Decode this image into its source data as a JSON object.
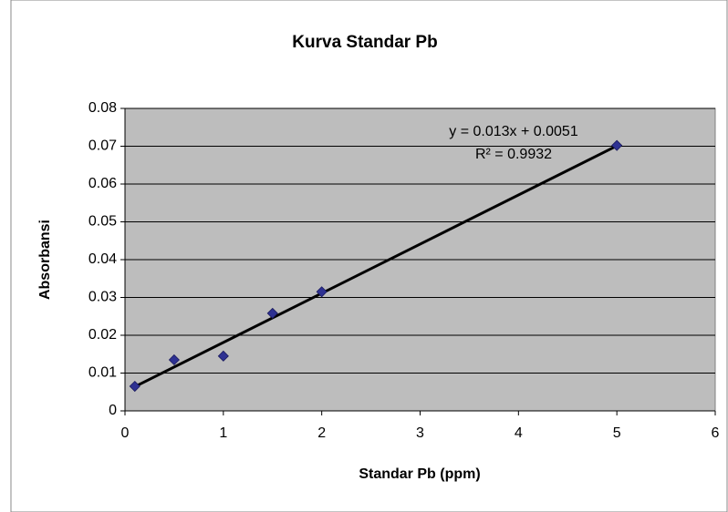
{
  "chart_data": {
    "type": "scatter",
    "title": "Kurva Standar Pb",
    "x_label": "Standar Pb (ppm)",
    "y_label": "Absorbansi",
    "x": [
      0.1,
      0.5,
      1,
      1.5,
      2,
      5
    ],
    "series": [
      {
        "color": "#2e3192",
        "values": [
          0.0065,
          0.0135,
          0.0145,
          0.0258,
          0.0315,
          0.0702
        ]
      }
    ],
    "xlim": [
      0,
      6
    ],
    "xticks": [
      0,
      1,
      2,
      3,
      4,
      5,
      6
    ],
    "ylim": [
      0,
      0.08
    ],
    "yticks": [
      0,
      0.01,
      0.02,
      0.03,
      0.04,
      0.05,
      0.06,
      0.07,
      0.08
    ],
    "grid": true,
    "trendline": {
      "slope": 0.013,
      "intercept": 0.0051,
      "equation": "y = 0.013x + 0.0051",
      "r_squared": "R² = 0.9932"
    }
  }
}
